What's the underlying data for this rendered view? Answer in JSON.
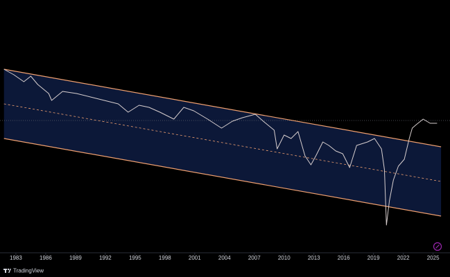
{
  "chart_data": {
    "type": "line",
    "x": [
      1981.8,
      1982.8,
      1983.8,
      1984.5,
      1985.2,
      1986.3,
      1986.6,
      1987.7,
      1989.1,
      1990.5,
      1991.9,
      1993.3,
      1994.3,
      1995.4,
      1996.4,
      1997.5,
      1998.9,
      1999.9,
      2000.9,
      2002.3,
      2003.7,
      2004.8,
      2005.8,
      2007.1,
      2007.9,
      2009.0,
      2009.3,
      2010.0,
      2010.7,
      2011.4,
      2012.1,
      2012.7,
      2013.2,
      2013.9,
      2014.5,
      2015.2,
      2015.9,
      2016.6,
      2017.3,
      2018.4,
      2019.1,
      2019.8,
      2020.1,
      2020.3,
      2020.6,
      2021.0,
      2021.5,
      2022.1,
      2022.6,
      2022.9,
      2023.3,
      2024.0,
      2024.7,
      2025.4
    ],
    "values": [
      265,
      257,
      247,
      255,
      243,
      230,
      220,
      233,
      230,
      225,
      220,
      215,
      203,
      213,
      210,
      203,
      193,
      210,
      205,
      193,
      180,
      190,
      195,
      200,
      190,
      177,
      150,
      170,
      165,
      175,
      140,
      127,
      140,
      160,
      155,
      147,
      143,
      123,
      155,
      160,
      165,
      150,
      120,
      40,
      75,
      105,
      125,
      135,
      165,
      180,
      185,
      193,
      187,
      187
    ],
    "color": "#d8cfcf",
    "channel": {
      "x": [
        1981.8,
        2025.8
      ],
      "upper": [
        265,
        153
      ],
      "middle": [
        215,
        103
      ],
      "lower": [
        165,
        53
      ],
      "color": "#f0a070",
      "fill": "#0c1838"
    },
    "price_line": 191,
    "xlim": [
      1981.4,
      2026.7
    ],
    "xticks": [
      1983,
      1986,
      1989,
      1992,
      1995,
      1998,
      2001,
      2004,
      2007,
      2010,
      2013,
      2016,
      2019,
      2022,
      2025
    ],
    "ylim": [
      0,
      365
    ]
  },
  "footer": {
    "brand": "TradingView"
  }
}
